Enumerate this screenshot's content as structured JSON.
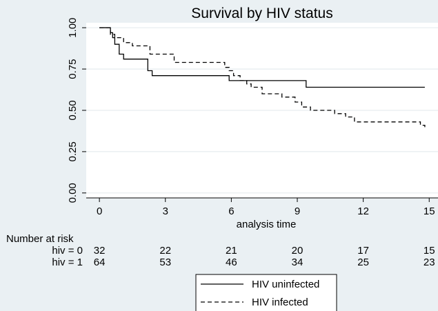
{
  "chart_data": {
    "type": "line",
    "title": "Survival by HIV status",
    "xlabel": "analysis time",
    "ylabel": "",
    "xlim": [
      -0.6,
      15.4
    ],
    "ylim": [
      -0.03,
      1.03
    ],
    "xticks": [
      0,
      3,
      6,
      9,
      12,
      15
    ],
    "yticks": [
      0,
      0.25,
      0.5,
      0.75,
      1
    ],
    "xtick_labels": [
      "0",
      "3",
      "6",
      "9",
      "12",
      "15"
    ],
    "ytick_labels": [
      "0.00",
      "0.25",
      "0.50",
      "0.75",
      "1.00"
    ],
    "grid": "horizontal",
    "series": [
      {
        "name": "HIV uninfected",
        "style": "solid",
        "x": [
          0,
          0.5,
          0.6,
          0.7,
          0.9,
          1.1,
          2.2,
          2.4,
          5.9,
          9.4,
          14.8
        ],
        "y": [
          1.0,
          0.97,
          0.94,
          0.9,
          0.84,
          0.81,
          0.74,
          0.71,
          0.68,
          0.64,
          0.64
        ]
      },
      {
        "name": "HIV infected",
        "style": "dashed",
        "x": [
          0,
          0.5,
          0.7,
          1.1,
          1.5,
          2.3,
          3.4,
          5.7,
          5.9,
          6.1,
          6.4,
          6.7,
          6.9,
          7.4,
          8.3,
          8.9,
          9.2,
          9.6,
          10.7,
          11.2,
          11.6,
          14.6,
          14.8
        ],
        "y": [
          1.0,
          0.96,
          0.94,
          0.91,
          0.89,
          0.84,
          0.79,
          0.76,
          0.74,
          0.71,
          0.68,
          0.66,
          0.64,
          0.6,
          0.58,
          0.55,
          0.52,
          0.5,
          0.48,
          0.46,
          0.43,
          0.41,
          0.39
        ]
      }
    ],
    "legend": {
      "position": "bottom",
      "entries": [
        "HIV uninfected",
        "HIV infected"
      ]
    },
    "risk_table": {
      "title": "Number at risk",
      "rows": [
        {
          "label": "hiv = 0",
          "values": [
            "32",
            "22",
            "21",
            "20",
            "17",
            "15"
          ]
        },
        {
          "label": "hiv = 1",
          "values": [
            "64",
            "53",
            "46",
            "34",
            "25",
            "23"
          ]
        }
      ]
    }
  }
}
